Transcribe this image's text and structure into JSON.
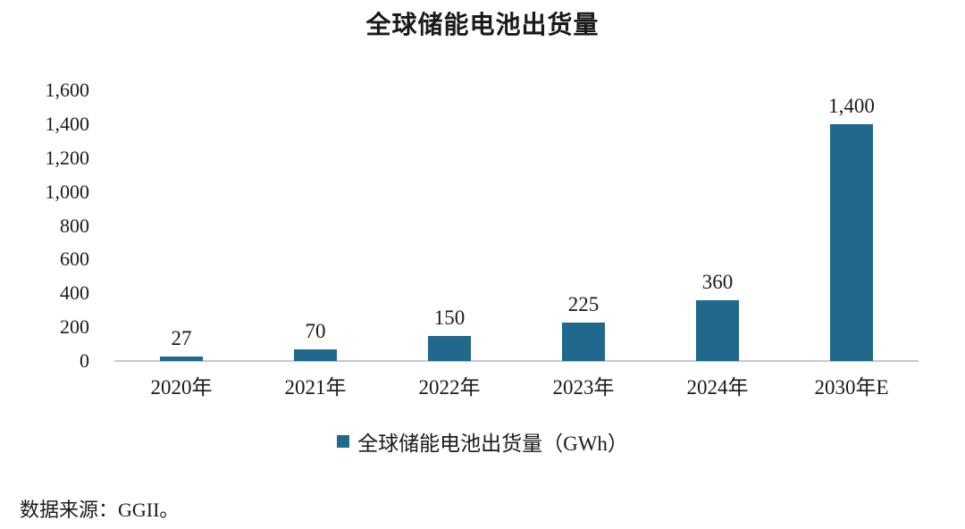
{
  "chart_data": {
    "type": "bar",
    "title": "全球储能电池出货量",
    "categories": [
      "2020年",
      "2021年",
      "2022年",
      "2023年",
      "2024年",
      "2030年E"
    ],
    "values": [
      27,
      70,
      150,
      225,
      360,
      1400
    ],
    "value_labels": [
      "27",
      "70",
      "150",
      "225",
      "360",
      "1,400"
    ],
    "legend": "全球储能电池出货量（GWh）",
    "xlabel": "",
    "ylabel": "",
    "ylim": [
      0,
      1600
    ],
    "ytick_step": 200,
    "ytick_labels": [
      "0",
      "200",
      "400",
      "600",
      "800",
      "1,000",
      "1,200",
      "1,400",
      "1,600"
    ],
    "grid": false,
    "legend_position": "bottom",
    "bar_color": "#20688C",
    "axis_line_color": "#c9c9c9",
    "text_color": "#1a1a1a"
  },
  "source": "数据来源：GGII。"
}
